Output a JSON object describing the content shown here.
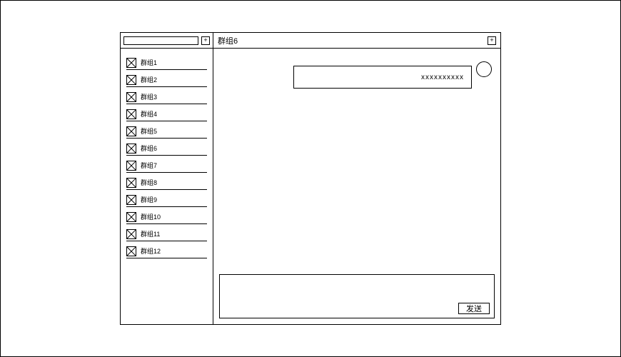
{
  "sidebar": {
    "add_label": "+",
    "groups": [
      {
        "label": "群组1"
      },
      {
        "label": "群组2"
      },
      {
        "label": "群组3"
      },
      {
        "label": "群组4"
      },
      {
        "label": "群组5"
      },
      {
        "label": "群组6"
      },
      {
        "label": "群组7"
      },
      {
        "label": "群组8"
      },
      {
        "label": "群组9"
      },
      {
        "label": "群组10"
      },
      {
        "label": "群组11"
      },
      {
        "label": "群组12"
      }
    ]
  },
  "chat": {
    "title": "群组6",
    "header_add_label": "+",
    "messages": [
      {
        "text": "xxxxxxxxxx"
      }
    ],
    "send_label": "发送"
  }
}
